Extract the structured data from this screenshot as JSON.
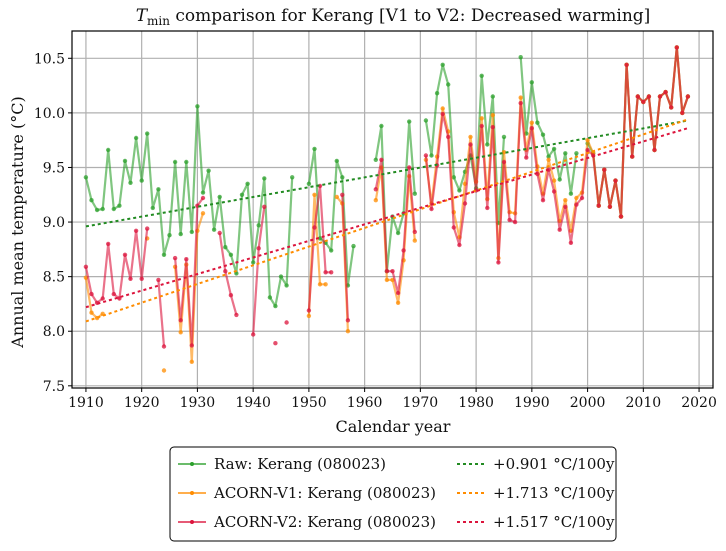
{
  "chart_data": {
    "type": "line",
    "title": {
      "main_italic": "T",
      "subscript": "min",
      "rest": " comparison for Kerang   [V1 to V2: Decreased warming]"
    },
    "xlabel": "Calendar year",
    "ylabel": "Annual mean temperature (°C)",
    "xlim": [
      1907.5,
      2022.5
    ],
    "ylim": [
      7.48,
      10.75
    ],
    "xticks": [
      1910,
      1920,
      1930,
      1940,
      1950,
      1960,
      1970,
      1980,
      1990,
      2000,
      2010,
      2020
    ],
    "xtick_labels": [
      "1910",
      "1920",
      "1930",
      "1940",
      "1950",
      "1960",
      "1970",
      "1980",
      "1990",
      "2000",
      "2010",
      "2020"
    ],
    "yticks": [
      7.5,
      8.0,
      8.5,
      9.0,
      9.5,
      10.0,
      10.5
    ],
    "ytick_labels": [
      "7.5",
      "8.0",
      "8.5",
      "9.0",
      "9.5",
      "10.0",
      "10.5"
    ],
    "grid": true,
    "legend_position": "below-center",
    "series": [
      {
        "name": "Raw: Kerang (080023)",
        "color": "#2ca02c",
        "x": [
          1910,
          1911,
          1912,
          1913,
          1914,
          1915,
          1916,
          1917,
          1918,
          1919,
          1920,
          1921,
          1922,
          1923,
          1924,
          1925,
          1926,
          1927,
          1928,
          1929,
          1930,
          1931,
          1932,
          1933,
          1934,
          1935,
          1936,
          1937,
          1938,
          1939,
          1940,
          1941,
          1942,
          1943,
          1944,
          1945,
          1946,
          1947,
          1948,
          1949,
          1950,
          1951,
          1952,
          1953,
          1954,
          1955,
          1956,
          1957,
          1958,
          1959,
          1960,
          1961,
          1962,
          1963,
          1964,
          1965,
          1966,
          1967,
          1968,
          1969,
          1970,
          1971,
          1972,
          1973,
          1974,
          1975,
          1976,
          1977,
          1978,
          1979,
          1980,
          1981,
          1982,
          1983,
          1984,
          1985,
          1986,
          1987,
          1988,
          1989,
          1990,
          1991,
          1992,
          1993,
          1994,
          1995,
          1996,
          1997,
          1998,
          1999,
          2000,
          2001,
          2002,
          2003,
          2004,
          2005,
          2006,
          2007,
          2008,
          2009,
          2010,
          2011,
          2012,
          2013,
          2014,
          2015,
          2016,
          2017,
          2018
        ],
        "values": [
          9.41,
          9.2,
          9.11,
          9.12,
          9.66,
          9.12,
          9.15,
          9.56,
          9.36,
          9.77,
          9.38,
          9.81,
          9.13,
          9.3,
          8.7,
          8.88,
          9.55,
          8.89,
          9.55,
          8.91,
          10.06,
          9.27,
          9.47,
          8.93,
          9.23,
          8.77,
          8.7,
          8.53,
          9.25,
          9.35,
          8.63,
          8.97,
          9.4,
          8.31,
          8.23,
          8.5,
          8.42,
          9.41,
          null,
          null,
          9.35,
          9.67,
          8.85,
          8.81,
          8.74,
          9.56,
          9.41,
          8.42,
          8.78,
          null,
          null,
          null,
          9.57,
          9.88,
          8.55,
          9.05,
          8.9,
          9.08,
          9.92,
          9.26,
          null,
          9.93,
          9.61,
          10.18,
          10.44,
          10.26,
          9.41,
          9.29,
          9.46,
          9.61,
          9.31,
          10.34,
          9.71,
          10.15,
          8.99,
          9.78,
          null,
          null,
          10.51,
          9.81,
          10.28,
          9.91,
          9.8,
          9.6,
          9.67,
          9.39,
          9.63,
          9.26,
          9.63,
          null,
          9.72,
          9.63,
          9.15,
          9.48,
          9.14,
          9.38,
          9.05,
          10.44,
          9.6,
          10.15,
          10.1,
          10.15,
          9.66,
          10.15,
          10.19,
          10.05,
          10.6,
          10.0,
          10.15
        ]
      },
      {
        "name": "ACORN-V1: Kerang (080023)",
        "color": "#ff8c00",
        "x": [
          1910,
          1911,
          1912,
          1913,
          1914,
          1915,
          1916,
          1917,
          1918,
          1919,
          1920,
          1921,
          1922,
          1923,
          1924,
          1925,
          1926,
          1927,
          1928,
          1929,
          1930,
          1931,
          1932,
          1933,
          1934,
          1935,
          1936,
          1937,
          1938,
          1939,
          1940,
          1941,
          1942,
          1943,
          1944,
          1945,
          1946,
          1947,
          1948,
          1949,
          1950,
          1951,
          1952,
          1953,
          1954,
          1955,
          1956,
          1957,
          1958,
          1959,
          1960,
          1961,
          1962,
          1963,
          1964,
          1965,
          1966,
          1967,
          1968,
          1969,
          1970,
          1971,
          1972,
          1973,
          1974,
          1975,
          1976,
          1977,
          1978,
          1979,
          1980,
          1981,
          1982,
          1983,
          1984,
          1985,
          1986,
          1987,
          1988,
          1989,
          1990,
          1991,
          1992,
          1993,
          1994,
          1995,
          1996,
          1997,
          1998,
          1999,
          2000,
          2001,
          2002,
          2003,
          2004,
          2005,
          2006,
          2007,
          2008,
          2009,
          2010,
          2011,
          2012,
          2013,
          2014,
          2015,
          2016,
          2017,
          2018
        ],
        "values": [
          8.49,
          8.17,
          8.12,
          8.16,
          null,
          null,
          null,
          null,
          null,
          null,
          null,
          8.85,
          null,
          null,
          7.64,
          null,
          8.59,
          7.99,
          8.61,
          7.72,
          8.92,
          9.08,
          null,
          null,
          null,
          null,
          null,
          null,
          null,
          null,
          null,
          null,
          null,
          null,
          null,
          null,
          null,
          null,
          null,
          null,
          8.14,
          9.25,
          8.43,
          8.43,
          null,
          9.23,
          9.17,
          8.0,
          null,
          null,
          null,
          null,
          9.2,
          9.5,
          8.47,
          8.47,
          8.26,
          8.65,
          9.42,
          8.83,
          null,
          9.57,
          9.17,
          9.6,
          10.04,
          9.83,
          9.09,
          8.86,
          9.35,
          9.78,
          9.37,
          9.95,
          9.21,
          9.98,
          8.67,
          9.64,
          9.09,
          9.08,
          10.14,
          9.66,
          9.91,
          9.51,
          9.26,
          9.57,
          9.38,
          9.01,
          9.2,
          8.92,
          9.22,
          9.27,
          9.75,
          9.63,
          9.15,
          9.48,
          9.14,
          9.38,
          9.05,
          10.44,
          9.6,
          10.15,
          10.1,
          10.15,
          9.66,
          10.15,
          10.19,
          10.05,
          10.6,
          10.0,
          10.15
        ]
      },
      {
        "name": "ACORN-V2: Kerang (080023)",
        "color": "#dc143c",
        "x": [
          1910,
          1911,
          1912,
          1913,
          1914,
          1915,
          1916,
          1917,
          1918,
          1919,
          1920,
          1921,
          1922,
          1923,
          1924,
          1925,
          1926,
          1927,
          1928,
          1929,
          1930,
          1931,
          1932,
          1933,
          1934,
          1935,
          1936,
          1937,
          1938,
          1939,
          1940,
          1941,
          1942,
          1943,
          1944,
          1945,
          1946,
          1947,
          1948,
          1949,
          1950,
          1951,
          1952,
          1953,
          1954,
          1955,
          1956,
          1957,
          1958,
          1959,
          1960,
          1961,
          1962,
          1963,
          1964,
          1965,
          1966,
          1967,
          1968,
          1969,
          1970,
          1971,
          1972,
          1973,
          1974,
          1975,
          1976,
          1977,
          1978,
          1979,
          1980,
          1981,
          1982,
          1983,
          1984,
          1985,
          1986,
          1987,
          1988,
          1989,
          1990,
          1991,
          1992,
          1993,
          1994,
          1995,
          1996,
          1997,
          1998,
          1999,
          2000,
          2001,
          2002,
          2003,
          2004,
          2005,
          2006,
          2007,
          2008,
          2009,
          2010,
          2011,
          2012,
          2013,
          2014,
          2015,
          2016,
          2017,
          2018
        ],
        "values": [
          8.59,
          8.34,
          8.26,
          8.3,
          8.8,
          8.34,
          8.3,
          8.7,
          8.48,
          8.92,
          8.48,
          8.94,
          null,
          8.47,
          7.86,
          null,
          8.67,
          8.1,
          8.66,
          7.87,
          9.15,
          9.22,
          null,
          null,
          8.9,
          8.55,
          8.33,
          8.15,
          null,
          null,
          7.97,
          8.76,
          9.14,
          null,
          7.89,
          null,
          8.08,
          null,
          null,
          null,
          8.19,
          8.95,
          9.33,
          8.54,
          8.54,
          null,
          9.25,
          8.1,
          null,
          null,
          null,
          null,
          9.3,
          9.57,
          8.55,
          8.55,
          8.35,
          8.74,
          9.5,
          8.91,
          null,
          9.61,
          9.12,
          9.52,
          9.99,
          9.78,
          8.95,
          8.79,
          9.17,
          9.71,
          9.29,
          9.88,
          9.13,
          9.87,
          8.63,
          9.55,
          9.02,
          9.0,
          10.09,
          9.59,
          9.86,
          9.44,
          9.2,
          9.48,
          9.28,
          8.93,
          9.14,
          8.81,
          9.16,
          9.22,
          9.66,
          9.61,
          9.15,
          9.48,
          9.14,
          9.38,
          9.05,
          10.44,
          9.6,
          10.15,
          10.1,
          10.15,
          9.66,
          10.15,
          10.19,
          10.05,
          10.6,
          10.0,
          10.15
        ]
      }
    ],
    "trends": [
      {
        "name": "+0.901 °C/100y",
        "color": "#228b22",
        "x": [
          1910,
          2018
        ],
        "values": [
          8.96,
          9.93
        ]
      },
      {
        "name": "+1.713 °C/100y",
        "color": "#ff8c00",
        "x": [
          1910,
          2018
        ],
        "values": [
          8.09,
          9.94
        ]
      },
      {
        "name": "+1.517 °C/100y",
        "color": "#dc143c",
        "x": [
          1910,
          2018
        ],
        "values": [
          8.22,
          9.86
        ]
      }
    ],
    "legend": {
      "left": [
        "Raw: Kerang (080023)",
        "ACORN-V1: Kerang (080023)",
        "ACORN-V2: Kerang (080023)"
      ],
      "right": [
        "+0.901 °C/100y",
        "+1.713 °C/100y",
        "+1.517 °C/100y"
      ]
    }
  }
}
